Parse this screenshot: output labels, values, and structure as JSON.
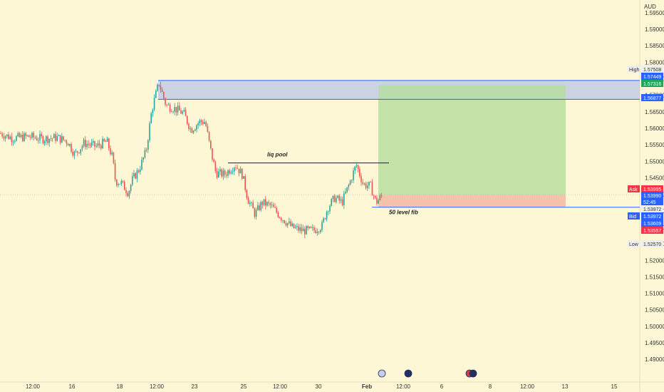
{
  "currency": "AUD",
  "x_axis_labels": [
    "12:00",
    "16",
    "18",
    "12:00",
    "23",
    "25",
    "12:00",
    "30",
    "Feb",
    "12:00",
    "6",
    "8",
    "12:00",
    "13",
    "15"
  ],
  "annotations": {
    "liq_pool": "liq pool",
    "fib": "50 level fib"
  },
  "price_tags": [
    {
      "label": "High",
      "value": "1.57508",
      "style": "plain"
    },
    {
      "label": "",
      "value": "1.57449",
      "style": "blue"
    },
    {
      "label": "",
      "value": "1.57316",
      "style": "green"
    },
    {
      "label": "",
      "value": "1.56877",
      "style": "blue"
    },
    {
      "label": "Ask",
      "value": "1.53995",
      "style": "red"
    },
    {
      "label": "",
      "value": "1.53990",
      "style": "blue"
    },
    {
      "label": "",
      "value": "52:45",
      "style": "blue"
    },
    {
      "label": "",
      "value": "1.53972",
      "style": "plain"
    },
    {
      "label": "Bid",
      "value": "1.53972",
      "style": "blue"
    },
    {
      "label": "",
      "value": "1.53609",
      "style": "blue"
    },
    {
      "label": "",
      "value": "1.53557",
      "style": "red"
    },
    {
      "label": "Low",
      "value": "1.52570",
      "style": "plain"
    }
  ],
  "colors": {
    "background": "#fdf7d6",
    "up": "#26a69a",
    "down": "#ef5350",
    "blue_line": "#2962ff",
    "profit_zone": "#b7dea0",
    "loss_zone": "#f6b8a5",
    "supply_zone": "#b9c6e4"
  },
  "chart_data": {
    "type": "candlestick",
    "ylim": [
      1.484,
      1.598
    ],
    "y_ticks": [
      1.49,
      1.495,
      1.5,
      1.505,
      1.51,
      1.515,
      1.52,
      1.525,
      1.53,
      1.535,
      1.54,
      1.545,
      1.55,
      1.555,
      1.56,
      1.565,
      1.57,
      1.575,
      1.58,
      1.585,
      1.59,
      1.595
    ],
    "levels": {
      "high": 1.57508,
      "zone_top": 1.57449,
      "target": 1.57316,
      "zone_bottom": 1.56877,
      "liq_pool": 1.5495,
      "entry": 1.5399,
      "stop": 1.53609,
      "low": 1.5257
    },
    "price_path": [
      [
        0,
        1.5585
      ],
      [
        18,
        1.557
      ],
      [
        40,
        1.5575
      ],
      [
        60,
        1.5568
      ],
      [
        80,
        1.5572
      ],
      [
        95,
        1.556
      ],
      [
        105,
        1.552
      ],
      [
        118,
        1.5555
      ],
      [
        135,
        1.5545
      ],
      [
        150,
        1.556
      ],
      [
        158,
        1.551
      ],
      [
        162,
        1.544
      ],
      [
        170,
        1.5435
      ],
      [
        180,
        1.5405
      ],
      [
        186,
        1.5445
      ],
      [
        195,
        1.5475
      ],
      [
        205,
        1.553
      ],
      [
        213,
        1.5655
      ],
      [
        223,
        1.5738
      ],
      [
        233,
        1.567
      ],
      [
        245,
        1.566
      ],
      [
        258,
        1.5645
      ],
      [
        268,
        1.5595
      ],
      [
        280,
        1.562
      ],
      [
        288,
        1.562
      ],
      [
        296,
        1.553
      ],
      [
        303,
        1.5465
      ],
      [
        315,
        1.546
      ],
      [
        330,
        1.549
      ],
      [
        340,
        1.546
      ],
      [
        348,
        1.5385
      ],
      [
        358,
        1.534
      ],
      [
        368,
        1.5375
      ],
      [
        380,
        1.5365
      ],
      [
        395,
        1.533
      ],
      [
        410,
        1.53
      ],
      [
        425,
        1.529
      ],
      [
        440,
        1.529
      ],
      [
        452,
        1.5305
      ],
      [
        460,
        1.536
      ],
      [
        470,
        1.539
      ],
      [
        480,
        1.5375
      ],
      [
        490,
        1.543
      ],
      [
        500,
        1.549
      ],
      [
        510,
        1.543
      ],
      [
        520,
        1.5425
      ],
      [
        528,
        1.5375
      ],
      [
        537,
        1.5398
      ]
    ]
  }
}
